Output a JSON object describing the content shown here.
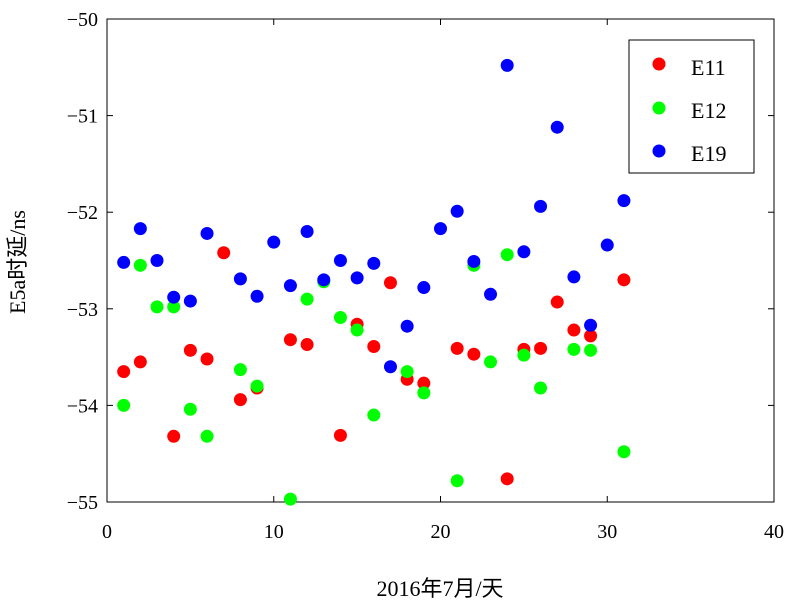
{
  "chart_data": {
    "type": "scatter",
    "xlabel": "2016年7月/天",
    "ylabel": "E5a时延/ns",
    "xlim": [
      0,
      40
    ],
    "ylim": [
      -55,
      -50
    ],
    "xticks": [
      0,
      10,
      20,
      30,
      40
    ],
    "yticks": [
      -55,
      -54,
      -53,
      -52,
      -51,
      -50
    ],
    "xtick_labels": [
      "0",
      "10",
      "20",
      "30",
      "40"
    ],
    "ytick_labels": [
      "−55",
      "−54",
      "−53",
      "−52",
      "−51",
      "−50"
    ],
    "grid": false,
    "legend_position": "top-right",
    "series": [
      {
        "name": "E11",
        "color": "#ff0000",
        "points": [
          [
            1,
            -53.65
          ],
          [
            2,
            -53.55
          ],
          [
            4,
            -54.32
          ],
          [
            5,
            -53.43
          ],
          [
            6,
            -53.52
          ],
          [
            7,
            -52.42
          ],
          [
            8,
            -53.94
          ],
          [
            9,
            -53.82
          ],
          [
            11,
            -53.32
          ],
          [
            12,
            -53.37
          ],
          [
            14,
            -54.31
          ],
          [
            15,
            -53.16
          ],
          [
            16,
            -53.39
          ],
          [
            17,
            -52.73
          ],
          [
            18,
            -53.73
          ],
          [
            19,
            -53.77
          ],
          [
            21,
            -53.41
          ],
          [
            22,
            -53.47
          ],
          [
            24,
            -54.76
          ],
          [
            25,
            -53.42
          ],
          [
            26,
            -53.41
          ],
          [
            27,
            -52.93
          ],
          [
            28,
            -53.22
          ],
          [
            29,
            -53.28
          ],
          [
            31,
            -52.7
          ]
        ]
      },
      {
        "name": "E12",
        "color": "#00ff00",
        "points": [
          [
            1,
            -54.0
          ],
          [
            2,
            -52.55
          ],
          [
            3,
            -52.98
          ],
          [
            4,
            -52.98
          ],
          [
            5,
            -54.04
          ],
          [
            6,
            -54.32
          ],
          [
            8,
            -53.63
          ],
          [
            9,
            -53.8
          ],
          [
            11,
            -54.97
          ],
          [
            12,
            -52.9
          ],
          [
            13,
            -52.72
          ],
          [
            14,
            -53.09
          ],
          [
            15,
            -53.22
          ],
          [
            16,
            -54.1
          ],
          [
            18,
            -53.65
          ],
          [
            19,
            -53.87
          ],
          [
            21,
            -54.78
          ],
          [
            22,
            -52.55
          ],
          [
            23,
            -53.55
          ],
          [
            24,
            -52.44
          ],
          [
            25,
            -53.48
          ],
          [
            26,
            -53.82
          ],
          [
            28,
            -53.42
          ],
          [
            29,
            -53.43
          ],
          [
            31,
            -54.48
          ]
        ]
      },
      {
        "name": "E19",
        "color": "#0000ff",
        "points": [
          [
            1,
            -52.52
          ],
          [
            2,
            -52.17
          ],
          [
            3,
            -52.5
          ],
          [
            4,
            -52.88
          ],
          [
            5,
            -52.92
          ],
          [
            6,
            -52.22
          ],
          [
            8,
            -52.69
          ],
          [
            9,
            -52.87
          ],
          [
            10,
            -52.31
          ],
          [
            11,
            -52.76
          ],
          [
            12,
            -52.2
          ],
          [
            13,
            -52.7
          ],
          [
            14,
            -52.5
          ],
          [
            15,
            -52.68
          ],
          [
            16,
            -52.53
          ],
          [
            17,
            -53.6
          ],
          [
            18,
            -53.18
          ],
          [
            19,
            -52.78
          ],
          [
            20,
            -52.17
          ],
          [
            21,
            -51.99
          ],
          [
            22,
            -52.51
          ],
          [
            23,
            -52.85
          ],
          [
            24,
            -50.48
          ],
          [
            25,
            -52.41
          ],
          [
            26,
            -51.94
          ],
          [
            27,
            -51.12
          ],
          [
            28,
            -52.67
          ],
          [
            29,
            -53.17
          ],
          [
            30,
            -52.34
          ],
          [
            31,
            -51.88
          ]
        ]
      }
    ]
  }
}
